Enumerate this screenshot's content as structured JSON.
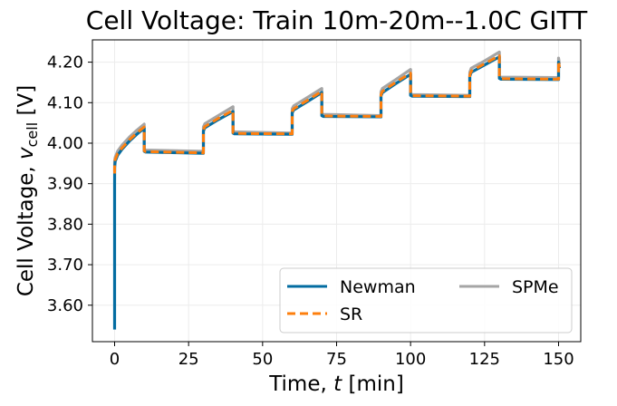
{
  "chart_data": {
    "type": "line",
    "title": "Cell Voltage: Train 10m-20m--1.0C GITT",
    "xlabel": {
      "prefix": "Time, ",
      "var": "t",
      "suffix": " [min]"
    },
    "ylabel": {
      "prefix": "Cell Voltage, ",
      "var": "v",
      "sub": "cell",
      "suffix": " [V]"
    },
    "xlim": [
      -7.5,
      157.5
    ],
    "ylim": [
      3.51,
      4.255
    ],
    "xticks": [
      0,
      25,
      50,
      75,
      100,
      125,
      150
    ],
    "xtick_labels": [
      "0",
      "25",
      "50",
      "75",
      "100",
      "125",
      "150"
    ],
    "yticks": [
      3.6,
      3.7,
      3.8,
      3.9,
      4.0,
      4.1,
      4.2
    ],
    "ytick_labels": [
      "3.60",
      "3.70",
      "3.80",
      "3.90",
      "4.00",
      "4.10",
      "4.20"
    ],
    "grid": true,
    "legend": {
      "location": "lower-right",
      "columns": 2
    },
    "series": [
      {
        "name": "SPMe",
        "color": "#a5a5a5",
        "style": "solid",
        "x": [
          0,
          0,
          0.2,
          1,
          2.5,
          5,
          7.5,
          10,
          10,
          10.5,
          30,
          30,
          30.5,
          35,
          40,
          40,
          40.5,
          60,
          60,
          60.5,
          65,
          70,
          70,
          70.5,
          90,
          90,
          90.5,
          95,
          100,
          100,
          100.5,
          120,
          120,
          120.5,
          125,
          130,
          130,
          130.5,
          150,
          150,
          150.3
        ],
        "y": [
          3.93,
          3.955,
          3.965,
          3.98,
          3.995,
          4.015,
          4.032,
          4.047,
          3.985,
          3.983,
          3.98,
          4.04,
          4.048,
          4.068,
          4.09,
          4.03,
          4.028,
          4.025,
          4.085,
          4.092,
          4.112,
          4.135,
          4.073,
          4.071,
          4.068,
          4.127,
          4.135,
          4.157,
          4.182,
          4.122,
          4.12,
          4.118,
          4.175,
          4.185,
          4.203,
          4.225,
          4.165,
          4.163,
          4.162,
          4.21,
          4.195
        ]
      },
      {
        "name": "Newman",
        "color": "#036ca1",
        "style": "solid",
        "x": [
          0,
          0,
          0.02,
          0.2,
          1,
          2.5,
          5,
          7.5,
          10,
          10,
          10.5,
          30,
          30,
          30.5,
          35,
          40,
          40,
          40.5,
          60,
          60,
          60.5,
          65,
          70,
          70,
          70.5,
          90,
          90,
          90.5,
          95,
          100,
          100,
          100.5,
          120,
          120,
          120.5,
          125,
          130,
          130,
          130.5,
          150,
          150,
          150.3
        ],
        "y": [
          3.54,
          3.9,
          3.94,
          3.955,
          3.97,
          3.985,
          4.005,
          4.022,
          4.037,
          3.98,
          3.978,
          3.975,
          4.03,
          4.038,
          4.058,
          4.078,
          4.025,
          4.023,
          4.022,
          4.075,
          4.082,
          4.102,
          4.125,
          4.068,
          4.066,
          4.065,
          4.117,
          4.125,
          4.147,
          4.17,
          4.118,
          4.116,
          4.115,
          4.165,
          4.175,
          4.193,
          4.213,
          4.16,
          4.158,
          4.157,
          4.2,
          4.185
        ]
      },
      {
        "name": "SR",
        "color": "#fd7f0e",
        "style": "dashed",
        "x": [
          0,
          0,
          0.2,
          1,
          2.5,
          5,
          7.5,
          10,
          10,
          10.5,
          30,
          30,
          30.5,
          35,
          40,
          40,
          40.5,
          60,
          60,
          60.5,
          65,
          70,
          70,
          70.5,
          90,
          90,
          90.5,
          95,
          100,
          100,
          100.5,
          120,
          120,
          120.5,
          125,
          130,
          130,
          130.5,
          150,
          150,
          150.3
        ],
        "y": [
          3.925,
          3.95,
          3.96,
          3.974,
          3.988,
          4.008,
          4.025,
          4.04,
          3.981,
          3.979,
          3.976,
          4.033,
          4.041,
          4.061,
          4.081,
          4.026,
          4.024,
          4.023,
          4.078,
          4.085,
          4.105,
          4.128,
          4.069,
          4.067,
          4.066,
          4.12,
          4.128,
          4.15,
          4.173,
          4.119,
          4.117,
          4.116,
          4.168,
          4.178,
          4.196,
          4.216,
          4.161,
          4.159,
          4.158,
          4.202,
          4.187
        ]
      }
    ],
    "legend_order": [
      "Newman",
      "SPMe",
      "SR"
    ]
  }
}
